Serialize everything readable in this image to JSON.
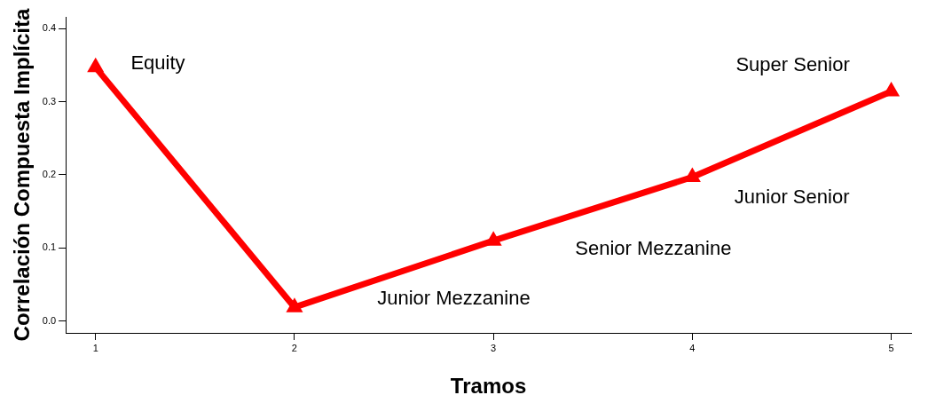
{
  "chart_data": {
    "type": "line",
    "xlabel": "Tramos",
    "ylabel": "Correlación Compuesta Implícita",
    "x": [
      1,
      2,
      3,
      4,
      5
    ],
    "series": [
      {
        "color": "#ff0000",
        "values": [
          0.347,
          0.019,
          0.11,
          0.197,
          0.314
        ]
      }
    ],
    "xlim": [
      0.85,
      5.1
    ],
    "xticks": [
      1,
      2,
      3,
      4,
      5
    ],
    "ylim": [
      -0.016,
      0.416
    ],
    "yticks": [
      {
        "value": 0,
        "label": "0.0"
      },
      0.1,
      0.2,
      0.3,
      0.4
    ],
    "marker": "triangle",
    "line_style": "solid",
    "grid": false,
    "legend": false,
    "annotations": [
      "Equity",
      "Junior Mezzanine",
      "Senior Mezzanine",
      "Junior Senior",
      "Super Senior"
    ]
  }
}
